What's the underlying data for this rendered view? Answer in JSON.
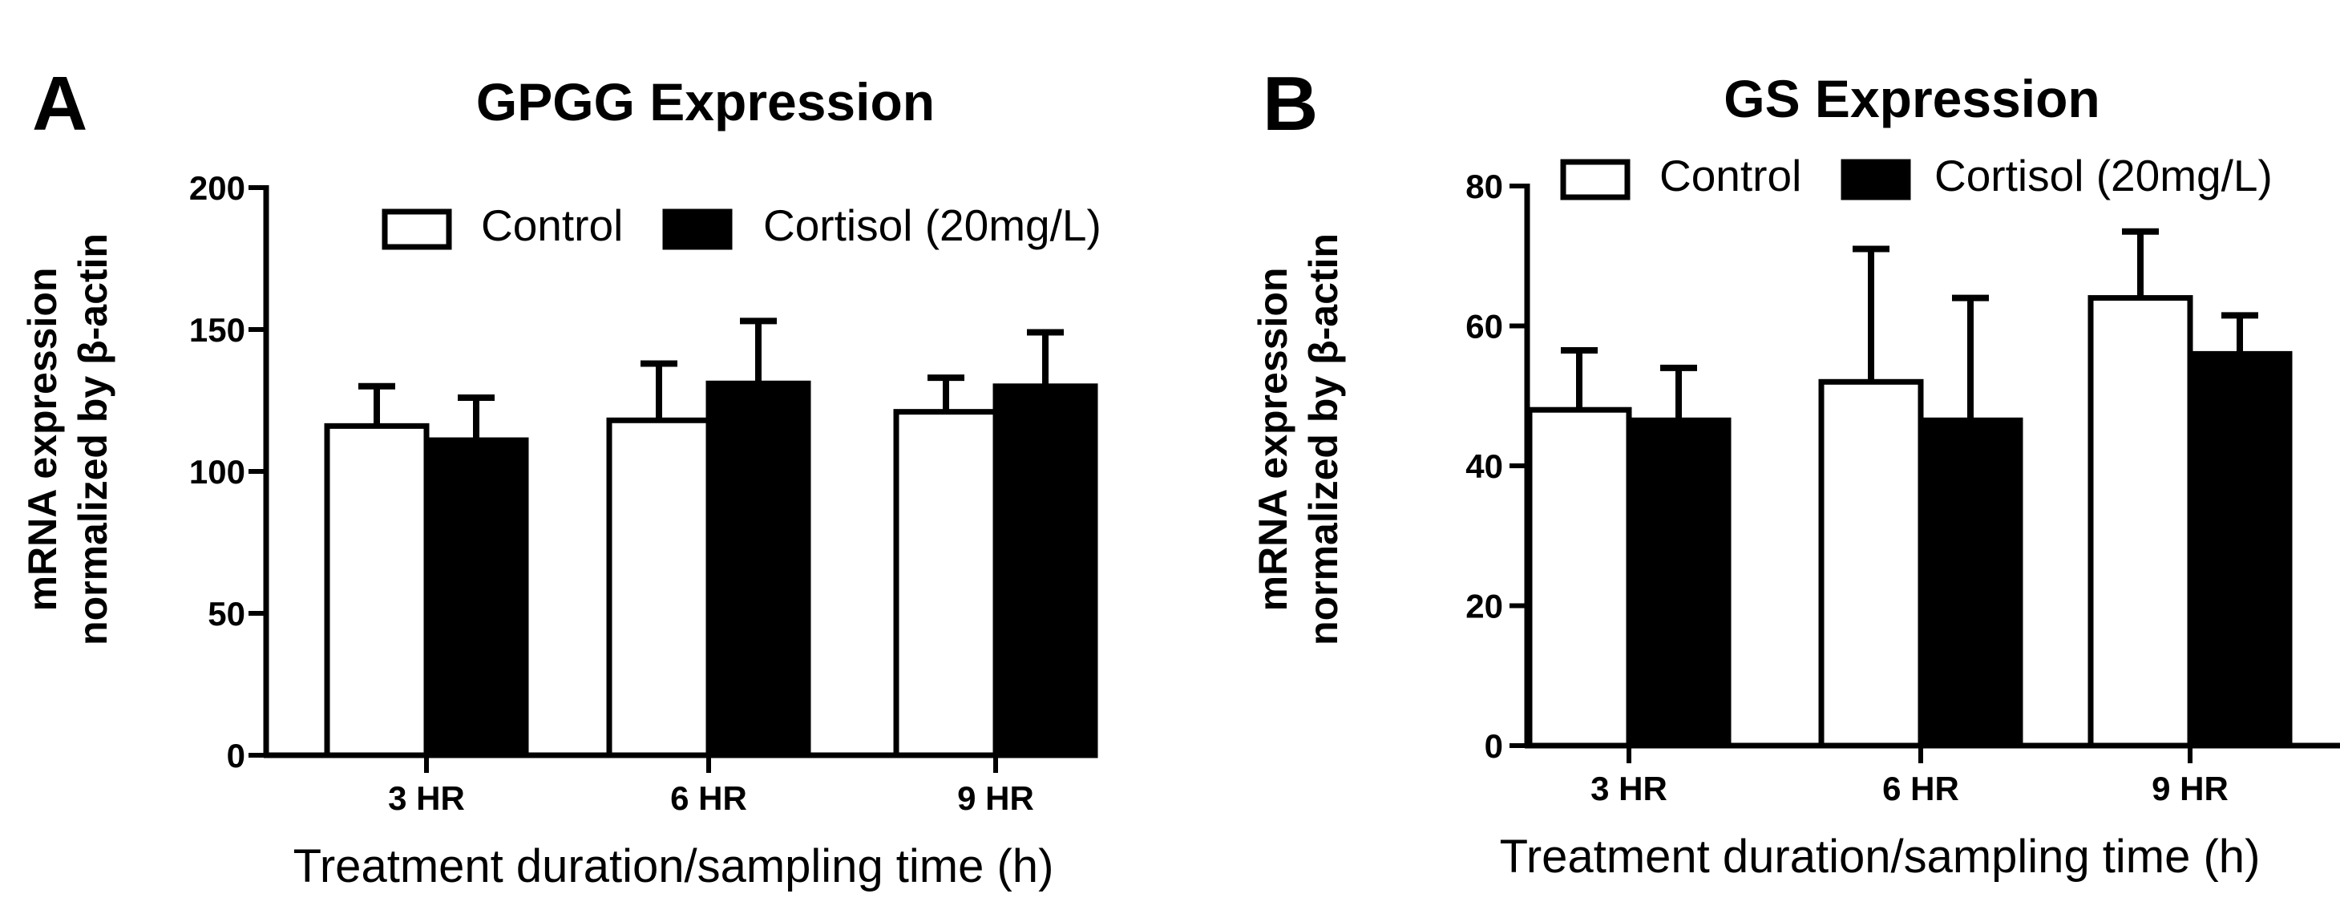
{
  "chart_data": [
    {
      "panel": "A",
      "type": "bar",
      "title": "GPGG Expression",
      "xlabel": "Treatment duration/sampling time (h)",
      "ylabel": [
        "mRNA expression",
        "normalized by β-actin"
      ],
      "ylim": [
        0,
        200
      ],
      "yticks": [
        0,
        50,
        100,
        150,
        200
      ],
      "categories": [
        "3 HR",
        "6 HR",
        "9 HR"
      ],
      "series": [
        {
          "name": "Control",
          "color": "#ffffff",
          "values": [
            116,
            118,
            121
          ],
          "errors": [
            14,
            20,
            12
          ]
        },
        {
          "name": "Cortisol (20mg/L)",
          "color": "#000000",
          "values": [
            111,
            131,
            130
          ],
          "errors": [
            15,
            22,
            19
          ]
        }
      ],
      "legend": "top-right"
    },
    {
      "panel": "B",
      "type": "bar",
      "title": "GS Expression",
      "xlabel": "Treatment duration/sampling time (h)",
      "ylabel": [
        "mRNA expression",
        "normalized by β-actin"
      ],
      "ylim": [
        0,
        80
      ],
      "yticks": [
        0,
        20,
        40,
        60,
        80
      ],
      "categories": [
        "3 HR",
        "6 HR",
        "9 HR"
      ],
      "series": [
        {
          "name": "Control",
          "color": "#ffffff",
          "values": [
            48,
            52,
            64
          ],
          "errors": [
            8.5,
            19,
            9.5
          ]
        },
        {
          "name": "Cortisol (20mg/L)",
          "color": "#000000",
          "values": [
            46.5,
            46.5,
            56
          ],
          "errors": [
            7.5,
            17.5,
            5.5
          ]
        }
      ],
      "legend": "top-right"
    }
  ]
}
